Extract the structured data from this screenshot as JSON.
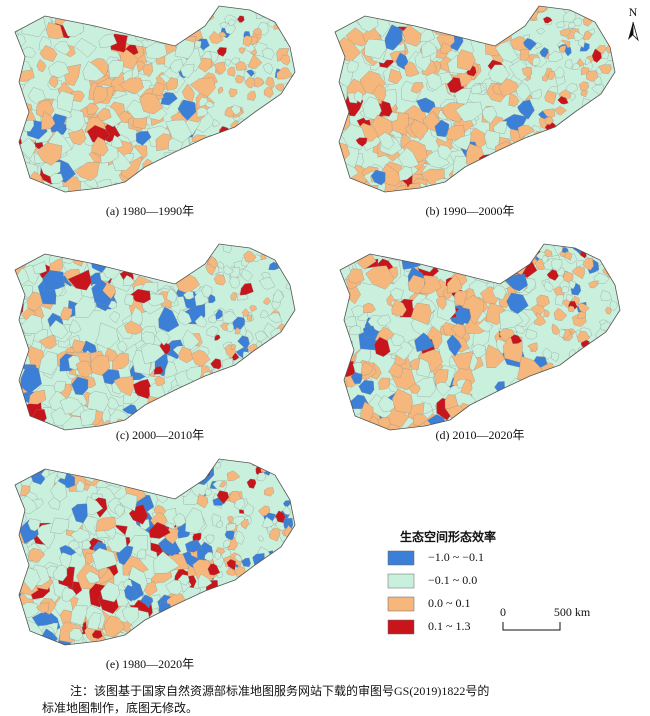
{
  "north": "N",
  "panels": [
    {
      "caption": "(a) 1980—1990年"
    },
    {
      "caption": "(b) 1990—2000年"
    },
    {
      "caption": "(c) 2000—2010年"
    },
    {
      "caption": "(d) 2010—2020年"
    },
    {
      "caption": "(e) 1980—2020年"
    }
  ],
  "legend": {
    "title": "生态空间形态效率",
    "items": [
      {
        "label": "−1.0 ~ −0.1",
        "color": "#3b7fd6"
      },
      {
        "label": "−0.1 ~ 0.0",
        "color": "#c9f0dc"
      },
      {
        "label": "0.0 ~ 0.1",
        "color": "#f6b77c"
      },
      {
        "label": "0.1 ~ 1.3",
        "color": "#c8141b"
      }
    ]
  },
  "scale_bar": {
    "start": "0",
    "end": "500 km"
  },
  "note": [
    "注：该图基于国家自然资源部标准地图服务网站下载的审图号GS(2019)1822号的",
    "标准地图制作，底图无修改。"
  ]
}
